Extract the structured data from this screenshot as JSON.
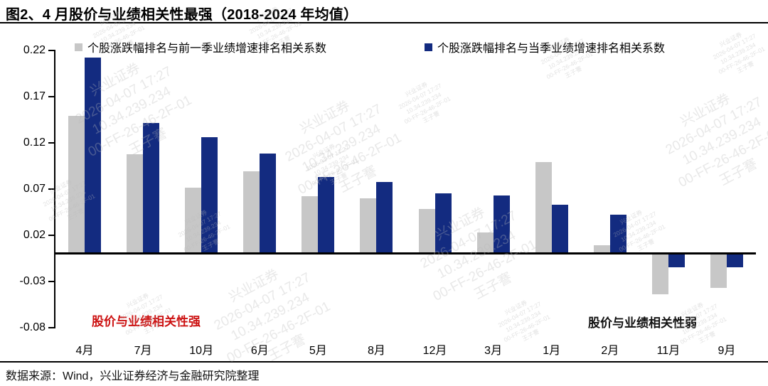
{
  "header": {
    "title": "图2、4 月股价与业绩相关性最强（2018-2024 年均值）"
  },
  "chart_data": {
    "type": "bar",
    "categories": [
      "4月",
      "7月",
      "10月",
      "6月",
      "5月",
      "8月",
      "12月",
      "3月",
      "1月",
      "2月",
      "11月",
      "9月"
    ],
    "series": [
      {
        "name": "个股涨跌幅排名与前一季业绩增速排名相关系数",
        "color": "#C7C7C7",
        "values": [
          0.149,
          0.107,
          0.071,
          0.089,
          0.062,
          0.06,
          0.048,
          0.023,
          0.099,
          0.009,
          -0.044,
          -0.037
        ]
      },
      {
        "name": "个股涨跌幅排名与当季业绩增速排名相关系数",
        "color": "#132B80",
        "values": [
          0.212,
          0.141,
          0.126,
          0.108,
          0.083,
          0.077,
          0.065,
          0.063,
          0.053,
          0.042,
          -0.015,
          -0.015
        ]
      }
    ],
    "title": "图2、4 月股价与业绩相关性最强（2018-2024 年均值）",
    "xlabel": "",
    "ylabel": "",
    "ylim": [
      -0.08,
      0.22
    ],
    "yticks": [
      0.22,
      0.17,
      0.12,
      0.07,
      0.02,
      -0.03,
      -0.08
    ],
    "grid": false,
    "legend_position": "top"
  },
  "annotations": {
    "strong": {
      "text": "股价与业绩相关性强",
      "color": "#CC1111"
    },
    "weak": {
      "text": "股价与业绩相关性弱",
      "color": "#111111"
    }
  },
  "footer": {
    "source": "数据来源：Wind，兴业证券经济与金融研究院整理"
  },
  "watermark": {
    "lines": [
      "兴业证券",
      "2026-04-07 17:27",
      "10.34.239.234",
      "00-FF-26-46-2F-01",
      "王子謇"
    ]
  }
}
